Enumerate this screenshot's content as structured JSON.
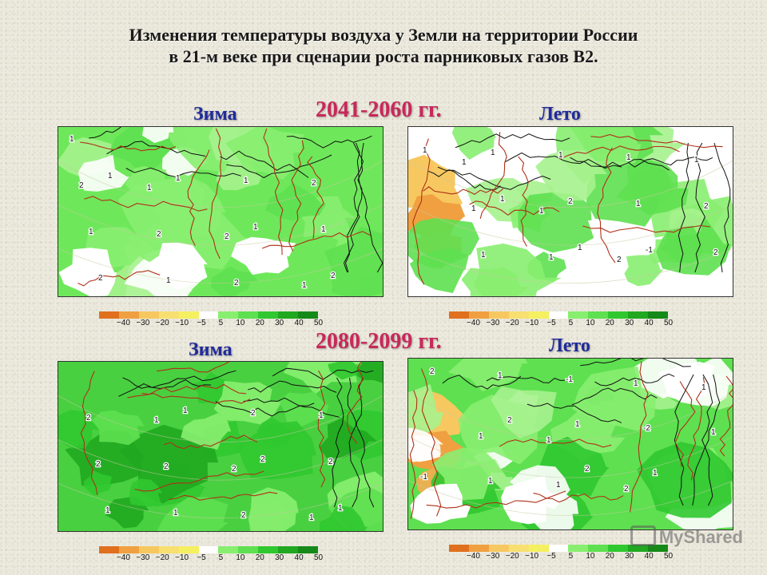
{
  "title": {
    "line1": "Изменения температуры воздуха у Земли на территории России",
    "line2": "в 21-м веке при сценарии роста парниковых газов В2."
  },
  "periods": [
    "2041-2060 гг.",
    "2080-2099 гг."
  ],
  "maps": [
    {
      "season": "Зима",
      "period_index": 0,
      "scheme": "winter1",
      "labels": [
        "1",
        "1",
        "2",
        "1",
        "2",
        "2",
        "2",
        "2",
        "1",
        "1",
        "1",
        "1",
        "2",
        "1",
        "1",
        "2",
        "1"
      ]
    },
    {
      "season": "Лето",
      "period_index": 0,
      "scheme": "summer1",
      "labels": [
        "1",
        "1",
        "2",
        "1",
        "1",
        "1",
        "1",
        "2",
        "1",
        "1",
        "1",
        "2",
        "1",
        "2",
        "-1",
        "1",
        "1",
        "1"
      ]
    },
    {
      "season": "Зима",
      "period_index": 1,
      "scheme": "winter2",
      "labels": [
        "1",
        "2",
        "1",
        "2",
        "2",
        "2",
        "1",
        "2",
        "1",
        "2",
        "2",
        "1",
        "1",
        "2",
        "1"
      ]
    },
    {
      "season": "Лето",
      "period_index": 1,
      "scheme": "summer2",
      "labels": [
        "1",
        "2",
        "1",
        "1",
        "1",
        "1",
        "1",
        "1",
        "-1",
        "-2",
        "-1",
        "1",
        "1",
        "1",
        "2",
        "2",
        "2"
      ]
    }
  ],
  "colorbar": {
    "ticks": [
      "−40",
      "−30",
      "−20",
      "−10",
      "−5",
      "5",
      "10",
      "20",
      "30",
      "40",
      "50"
    ],
    "colors": [
      "#e0701e",
      "#f0a040",
      "#f7c860",
      "#f8e070",
      "#f5f060",
      "#ffffff",
      "#88ee70",
      "#5ee050",
      "#30c830",
      "#20a820",
      "#168a18"
    ]
  },
  "watermark": "MyShared"
}
